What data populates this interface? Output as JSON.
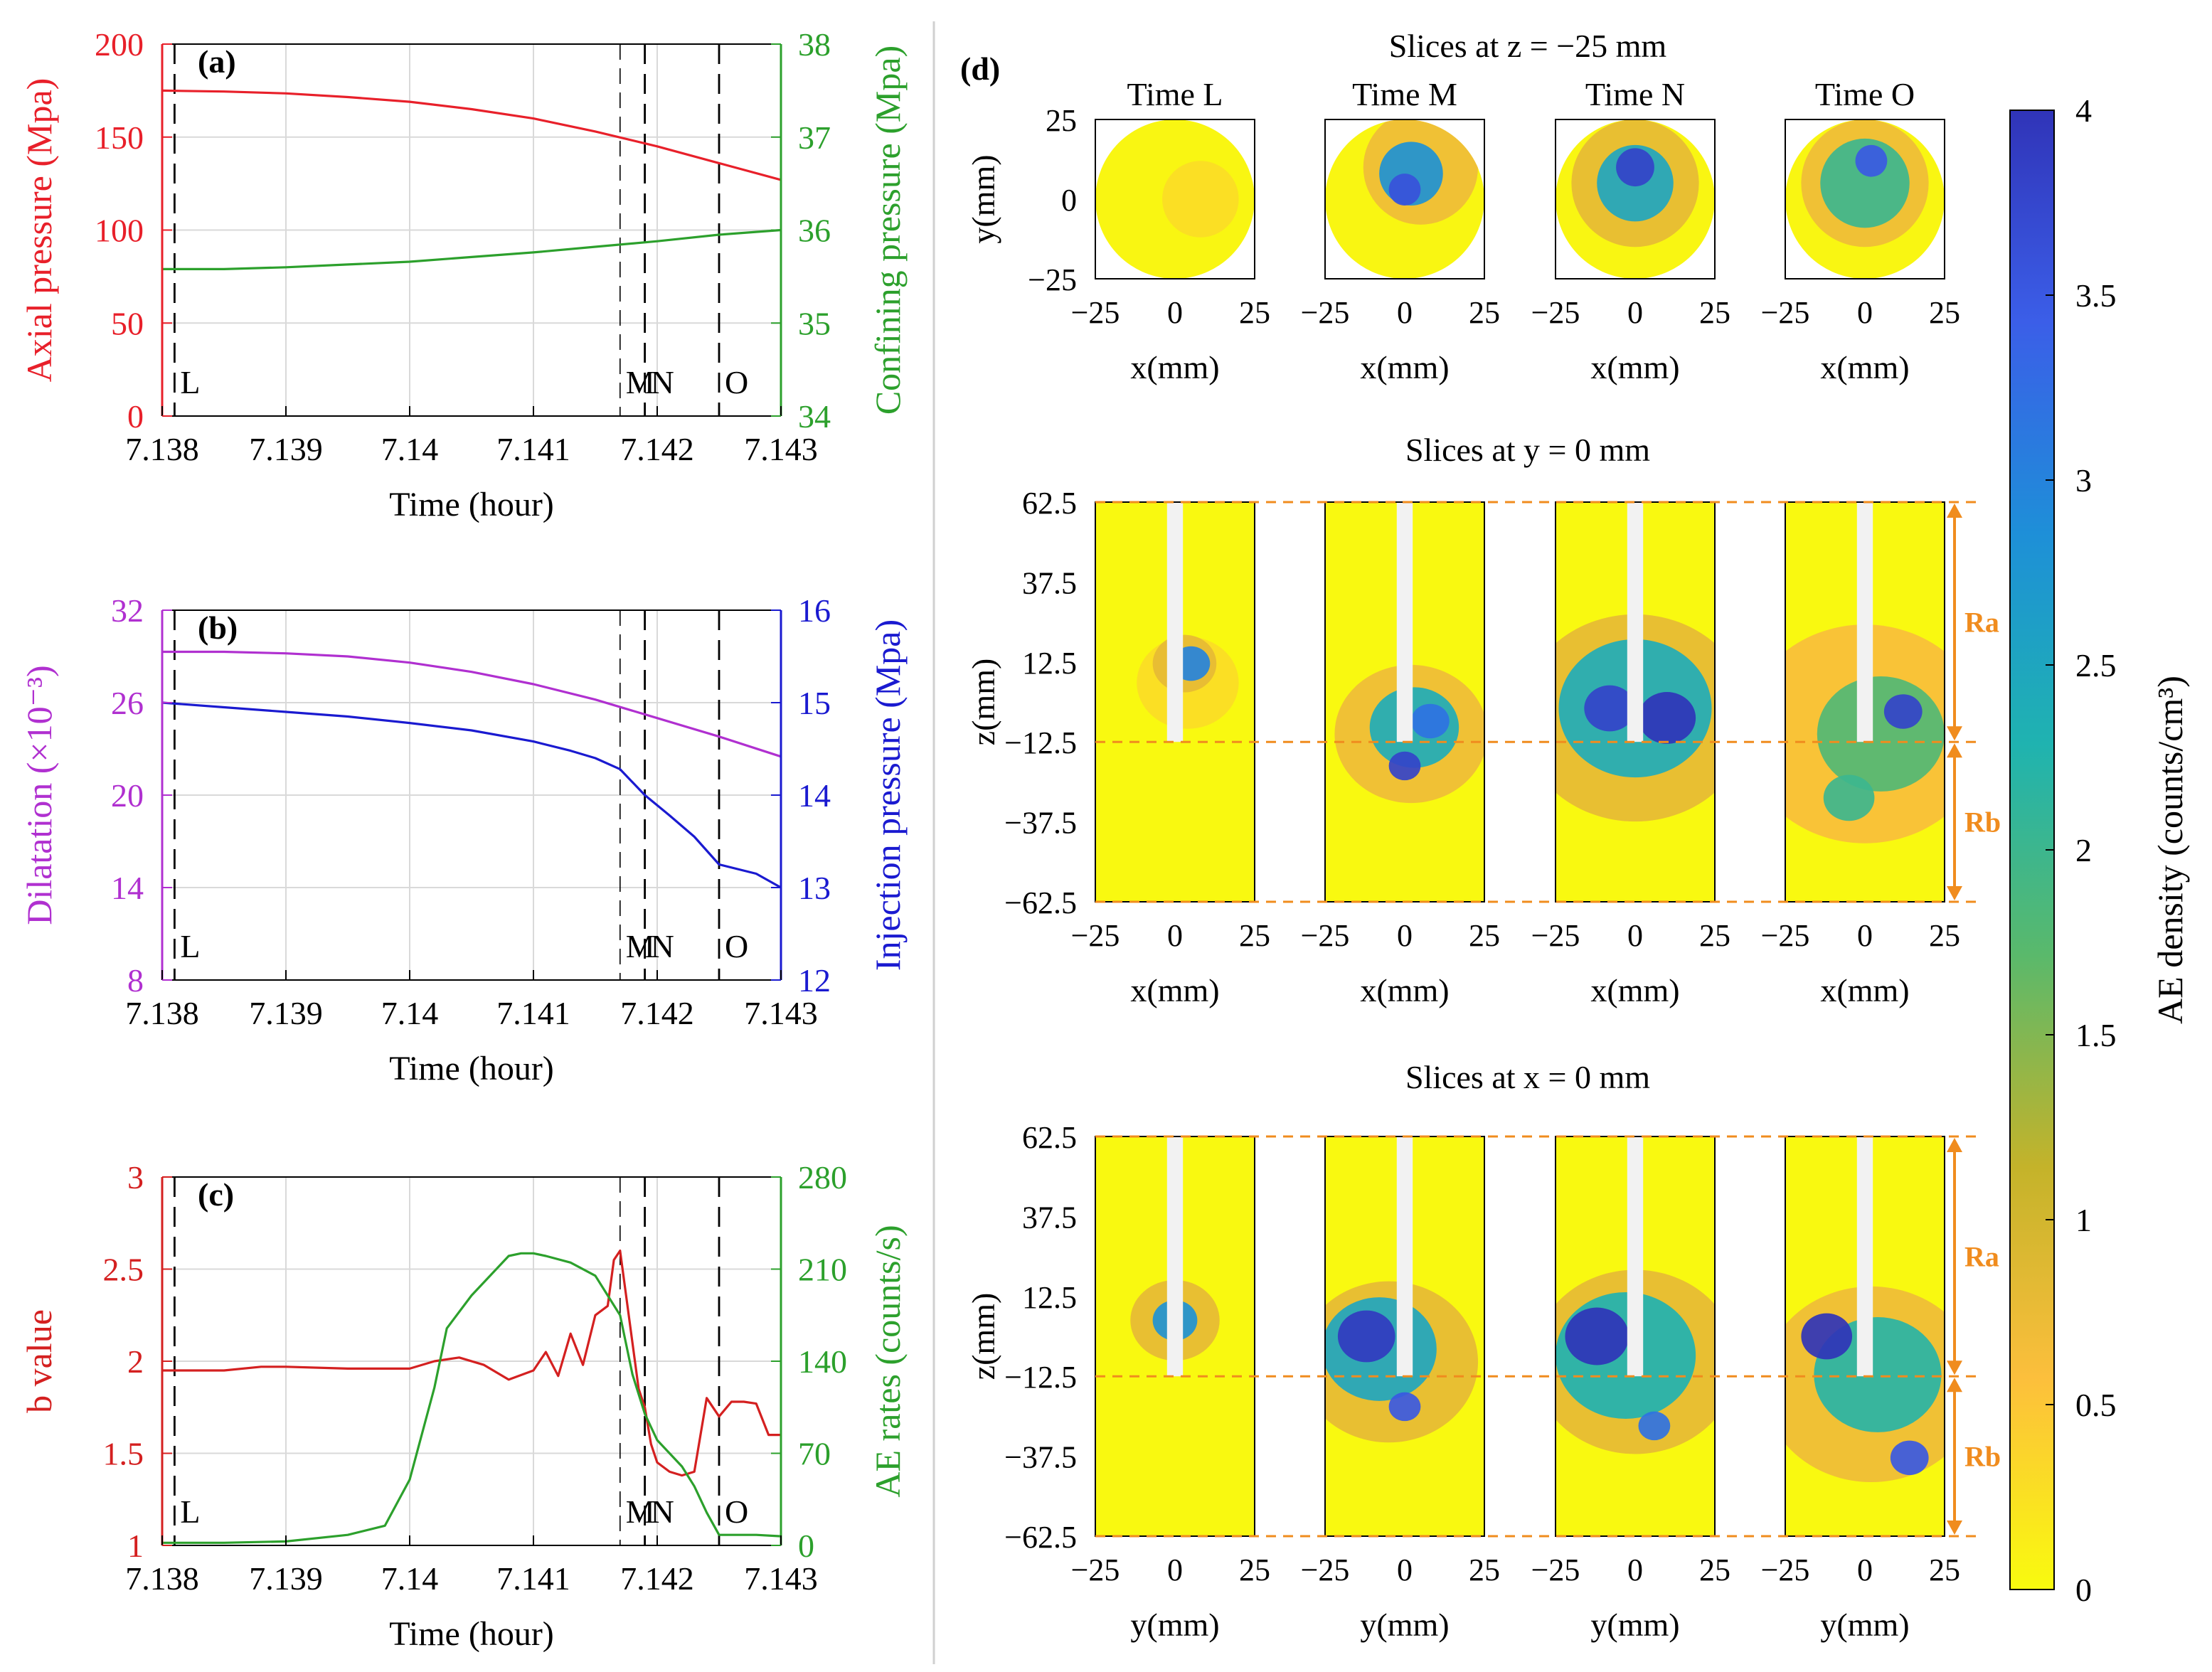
{
  "colors": {
    "axial": "#e8202a",
    "confining": "#2ca02c",
    "dilatation": "#b030d0",
    "injection": "#1a1ad0",
    "bvalue": "#d42020",
    "ae_rate": "#2ca02c",
    "marker": "#000000",
    "orange": "#f08c1e",
    "grid": "#d9d9d9"
  },
  "chart_data": [
    {
      "id": "a",
      "panel_label": "(a)",
      "type": "line",
      "xlabel": "Time (hour)",
      "xlim": [
        7.138,
        7.143
      ],
      "xticks": [
        7.138,
        7.139,
        7.14,
        7.141,
        7.142,
        7.143
      ],
      "xtick_labels": [
        "7.138",
        "7.139",
        "7.14",
        "7.141",
        "7.142",
        "7.143"
      ],
      "left_axis": {
        "label": "Axial pressure (Mpa)",
        "ylim": [
          0,
          200
        ],
        "ticks": [
          0,
          50,
          100,
          150,
          200
        ],
        "tick_labels": [
          "0",
          "50",
          "100",
          "150",
          "200"
        ]
      },
      "right_axis": {
        "label": "Confining pressure (Mpa)",
        "ylim": [
          34,
          38
        ],
        "ticks": [
          34,
          35,
          36,
          37,
          38
        ],
        "tick_labels": [
          "34",
          "35",
          "36",
          "37",
          "38"
        ]
      },
      "series": [
        {
          "name": "Axial pressure",
          "axis": "left",
          "color_key": "axial",
          "x": [
            7.138,
            7.1385,
            7.139,
            7.1395,
            7.14,
            7.1405,
            7.141,
            7.1415,
            7.142,
            7.1425,
            7.143
          ],
          "y": [
            175,
            174.5,
            173.5,
            171.5,
            169,
            165,
            160,
            153,
            145,
            136,
            127
          ]
        },
        {
          "name": "Confining pressure",
          "axis": "right",
          "color_key": "confining",
          "x": [
            7.138,
            7.1385,
            7.139,
            7.1395,
            7.14,
            7.1405,
            7.141,
            7.1415,
            7.142,
            7.1425,
            7.143
          ],
          "y": [
            35.58,
            35.58,
            35.6,
            35.63,
            35.66,
            35.71,
            35.76,
            35.82,
            35.88,
            35.95,
            36.0
          ]
        }
      ],
      "markers": [
        {
          "label": "L",
          "x": 7.1381,
          "style": "dashed"
        },
        {
          "label": "M",
          "x": 7.1417,
          "style": "thin-dashed"
        },
        {
          "label": "N",
          "x": 7.1419,
          "style": "dashed"
        },
        {
          "label": "O",
          "x": 7.1425,
          "style": "dashed"
        }
      ],
      "grid": true
    },
    {
      "id": "b",
      "panel_label": "(b)",
      "type": "line",
      "xlabel": "Time (hour)",
      "xlim": [
        7.138,
        7.143
      ],
      "xticks": [
        7.138,
        7.139,
        7.14,
        7.141,
        7.142,
        7.143
      ],
      "xtick_labels": [
        "7.138",
        "7.139",
        "7.14",
        "7.141",
        "7.142",
        "7.143"
      ],
      "left_axis": {
        "label": "Dilatation (×10⁻³)",
        "ylim": [
          8,
          32
        ],
        "ticks": [
          8,
          14,
          20,
          26,
          32
        ],
        "tick_labels": [
          "8",
          "14",
          "20",
          "26",
          "32"
        ]
      },
      "right_axis": {
        "label": "Injection pressure (Mpa)",
        "ylim": [
          12,
          16
        ],
        "ticks": [
          12,
          13,
          14,
          15,
          16
        ],
        "tick_labels": [
          "12",
          "13",
          "14",
          "15",
          "16"
        ]
      },
      "series": [
        {
          "name": "Dilatation",
          "axis": "left",
          "color_key": "dilatation",
          "x": [
            7.138,
            7.1385,
            7.139,
            7.1395,
            7.14,
            7.1405,
            7.141,
            7.1415,
            7.142,
            7.1425,
            7.143
          ],
          "y": [
            29.3,
            29.3,
            29.2,
            29.0,
            28.6,
            28.0,
            27.2,
            26.2,
            25.0,
            23.8,
            22.5
          ]
        },
        {
          "name": "Injection pressure",
          "axis": "right",
          "color_key": "injection",
          "x": [
            7.138,
            7.1385,
            7.139,
            7.1395,
            7.14,
            7.1405,
            7.141,
            7.1413,
            7.1415,
            7.1417,
            7.1419,
            7.1421,
            7.1423,
            7.1425,
            7.1428,
            7.143
          ],
          "y": [
            15.0,
            14.95,
            14.9,
            14.85,
            14.78,
            14.7,
            14.58,
            14.48,
            14.4,
            14.28,
            14.0,
            13.78,
            13.55,
            13.25,
            13.15,
            13.0
          ]
        }
      ],
      "markers": [
        {
          "label": "L",
          "x": 7.1381,
          "style": "dashed"
        },
        {
          "label": "M",
          "x": 7.1417,
          "style": "thin-dashed"
        },
        {
          "label": "N",
          "x": 7.1419,
          "style": "dashed"
        },
        {
          "label": "O",
          "x": 7.1425,
          "style": "dashed"
        }
      ],
      "grid": true
    },
    {
      "id": "c",
      "panel_label": "(c)",
      "type": "line",
      "xlabel": "Time (hour)",
      "xlim": [
        7.138,
        7.143
      ],
      "xticks": [
        7.138,
        7.139,
        7.14,
        7.141,
        7.142,
        7.143
      ],
      "xtick_labels": [
        "7.138",
        "7.139",
        "7.14",
        "7.141",
        "7.142",
        "7.143"
      ],
      "left_axis": {
        "label": "b value",
        "ylim": [
          1,
          3
        ],
        "ticks": [
          1,
          1.5,
          2,
          2.5,
          3
        ],
        "tick_labels": [
          "1",
          "1.5",
          "2",
          "2.5",
          "3"
        ]
      },
      "right_axis": {
        "label": "AE rates (counts/s)",
        "ylim": [
          0,
          280
        ],
        "ticks": [
          0,
          70,
          140,
          210,
          280
        ],
        "tick_labels": [
          "0",
          "70",
          "140",
          "210",
          "280"
        ]
      },
      "series": [
        {
          "name": "b value",
          "axis": "left",
          "color_key": "bvalue",
          "x": [
            7.138,
            7.1385,
            7.1388,
            7.139,
            7.1395,
            7.1398,
            7.14,
            7.1402,
            7.1404,
            7.1406,
            7.1408,
            7.141,
            7.1411,
            7.1412,
            7.1413,
            7.1414,
            7.1415,
            7.1416,
            7.14165,
            7.1417,
            7.14175,
            7.1418,
            7.14185,
            7.1419,
            7.14195,
            7.142,
            7.1421,
            7.1422,
            7.1423,
            7.1424,
            7.1425,
            7.1426,
            7.1427,
            7.1428,
            7.1429,
            7.143
          ],
          "y": [
            1.95,
            1.95,
            1.97,
            1.97,
            1.96,
            1.96,
            1.96,
            2.0,
            2.02,
            1.98,
            1.9,
            1.95,
            2.05,
            1.92,
            2.15,
            1.98,
            2.25,
            2.3,
            2.55,
            2.6,
            2.35,
            2.1,
            1.85,
            1.75,
            1.55,
            1.45,
            1.4,
            1.38,
            1.4,
            1.8,
            1.7,
            1.78,
            1.78,
            1.77,
            1.6,
            1.6
          ]
        },
        {
          "name": "AE rates",
          "axis": "right",
          "color_key": "ae_rate",
          "x": [
            7.138,
            7.1385,
            7.139,
            7.1395,
            7.1398,
            7.14,
            7.1402,
            7.1403,
            7.1405,
            7.1408,
            7.1409,
            7.141,
            7.1411,
            7.1413,
            7.1415,
            7.1416,
            7.1417,
            7.1418,
            7.1419,
            7.142,
            7.1421,
            7.1422,
            7.1423,
            7.1424,
            7.1425,
            7.1428,
            7.143
          ],
          "y": [
            2,
            2,
            3,
            8,
            15,
            50,
            120,
            165,
            190,
            220,
            222,
            222,
            220,
            215,
            205,
            190,
            175,
            130,
            100,
            80,
            70,
            60,
            45,
            25,
            8,
            8,
            7
          ]
        }
      ],
      "markers": [
        {
          "label": "L",
          "x": 7.1381,
          "style": "dashed"
        },
        {
          "label": "M",
          "x": 7.1417,
          "style": "thin-dashed"
        },
        {
          "label": "N",
          "x": 7.1419,
          "style": "dashed"
        },
        {
          "label": "O",
          "x": 7.1425,
          "style": "dashed"
        }
      ],
      "grid": true
    },
    {
      "id": "d",
      "panel_label": "(d)",
      "type": "heatmap",
      "times": [
        "Time L",
        "Time M",
        "Time N",
        "Time O"
      ],
      "rows": [
        {
          "title": "Slices at z = −25 mm",
          "shape": "circle",
          "xlabel": "x(mm)",
          "ylabel": "y(mm)",
          "xticks": [
            "−25",
            "0",
            "25"
          ],
          "yticks": [
            "25",
            "0",
            "−25"
          ],
          "xrange": [
            -25,
            25
          ],
          "yrange": [
            -25,
            25
          ]
        },
        {
          "title": "Slices at y = 0 mm",
          "shape": "rect",
          "xlabel": "x(mm)",
          "ylabel": "z(mm)",
          "xticks": [
            "−25",
            "0",
            "25"
          ],
          "yticks": [
            "62.5",
            "37.5",
            "12.5",
            "−12.5",
            "−37.5",
            "−62.5"
          ],
          "xrange": [
            -25,
            25
          ],
          "yrange": [
            -62.5,
            62.5
          ]
        },
        {
          "title": "Slices at x = 0 mm",
          "shape": "rect",
          "xlabel": "y(mm)",
          "ylabel": "z(mm)",
          "xticks": [
            "−25",
            "0",
            "25"
          ],
          "yticks": [
            "62.5",
            "37.5",
            "12.5",
            "−12.5",
            "−37.5",
            "−62.5"
          ],
          "xrange": [
            -25,
            25
          ],
          "yrange": [
            -62.5,
            62.5
          ]
        }
      ],
      "region_labels": [
        "Ra",
        "Rb"
      ],
      "region_boundaries_z": [
        62.5,
        -12.5,
        -62.5
      ],
      "density_blobs": [
        [
          [
            {
              "cx": 8,
              "cy": 0,
              "r": 12,
              "v": 0.3
            }
          ],
          [
            {
              "cx": 5,
              "cy": 12,
              "r": 6,
              "v": 3.0
            },
            {
              "cx": 3,
              "cy": 12,
              "r": 10,
              "v": 0.8
            },
            {
              "cx": 4,
              "cy": 6,
              "r": 16,
              "v": 0.3
            }
          ],
          [
            {
              "cx": 0,
              "cy": 5,
              "r": 7,
              "v": 2.8
            },
            {
              "cx": 0,
              "cy": 5,
              "r": 14,
              "v": 0.8
            }
          ]
        ],
        [
          [
            {
              "cx": 2,
              "cy": 8,
              "r": 10,
              "v": 2.8
            },
            {
              "cx": 0,
              "cy": 3,
              "r": 5,
              "v": 3.6
            },
            {
              "cx": 5,
              "cy": 10,
              "r": 18,
              "v": 0.7
            }
          ],
          [
            {
              "cx": 8,
              "cy": -6,
              "r": 6,
              "v": 3.2
            },
            {
              "cx": 0,
              "cy": -20,
              "r": 5,
              "v": 3.8
            },
            {
              "cx": 3,
              "cy": -8,
              "r": 14,
              "v": 2.4
            },
            {
              "cx": 2,
              "cy": -10,
              "r": 24,
              "v": 0.7
            }
          ],
          [
            {
              "cx": -12,
              "cy": 0,
              "r": 9,
              "v": 3.9
            },
            {
              "cx": 0,
              "cy": -22,
              "r": 5,
              "v": 3.5
            },
            {
              "cx": -8,
              "cy": -4,
              "r": 18,
              "v": 2.5
            },
            {
              "cx": -5,
              "cy": -8,
              "r": 28,
              "v": 0.8
            }
          ]
        ],
        [
          [
            {
              "cx": 0,
              "cy": 10,
              "r": 6,
              "v": 3.8
            },
            {
              "cx": 0,
              "cy": 5,
              "r": 12,
              "v": 2.5
            },
            {
              "cx": 0,
              "cy": 5,
              "r": 20,
              "v": 0.8
            }
          ],
          [
            {
              "cx": 10,
              "cy": -5,
              "r": 9,
              "v": 4.0
            },
            {
              "cx": -8,
              "cy": -2,
              "r": 8,
              "v": 3.8
            },
            {
              "cx": 0,
              "cy": -2,
              "r": 24,
              "v": 2.4
            },
            {
              "cx": 0,
              "cy": -5,
              "r": 36,
              "v": 0.8
            }
          ],
          [
            {
              "cx": -12,
              "cy": 0,
              "r": 10,
              "v": 4.0
            },
            {
              "cx": 6,
              "cy": -28,
              "r": 5,
              "v": 3.2
            },
            {
              "cx": -3,
              "cy": -6,
              "r": 22,
              "v": 2.3
            },
            {
              "cx": 0,
              "cy": -8,
              "r": 32,
              "v": 0.8
            }
          ]
        ],
        [
          [
            {
              "cx": 2,
              "cy": 12,
              "r": 5,
              "v": 3.5
            },
            {
              "cx": 0,
              "cy": 5,
              "r": 14,
              "v": 2.0
            },
            {
              "cx": 0,
              "cy": 5,
              "r": 20,
              "v": 0.7
            }
          ],
          [
            {
              "cx": 12,
              "cy": -3,
              "r": 6,
              "v": 3.8
            },
            {
              "cx": -5,
              "cy": -30,
              "r": 8,
              "v": 2.0
            },
            {
              "cx": 5,
              "cy": -10,
              "r": 20,
              "v": 1.8
            },
            {
              "cx": 0,
              "cy": -10,
              "r": 38,
              "v": 0.6
            }
          ],
          [
            {
              "cx": -12,
              "cy": 0,
              "r": 8,
              "v": 4.0
            },
            {
              "cx": 14,
              "cy": -38,
              "r": 6,
              "v": 3.5
            },
            {
              "cx": 4,
              "cy": -12,
              "r": 20,
              "v": 2.2
            },
            {
              "cx": 2,
              "cy": -15,
              "r": 34,
              "v": 0.7
            }
          ]
        ]
      ],
      "colorbar": {
        "label": "AE density (counts/cm³)",
        "range": [
          0,
          4
        ],
        "ticks": [
          0,
          0.5,
          1,
          1.5,
          2,
          2.5,
          3,
          3.5,
          4
        ],
        "tick_labels": [
          "0",
          "0.5",
          "1",
          "1.5",
          "2",
          "2.5",
          "3",
          "3.5",
          "4"
        ],
        "stops": [
          "#f9fb0e",
          "#fcbf3c",
          "#c4b32a",
          "#5ab96b",
          "#1fb3b0",
          "#1e8fd8",
          "#3b5ee8",
          "#3034b8"
        ]
      }
    }
  ]
}
